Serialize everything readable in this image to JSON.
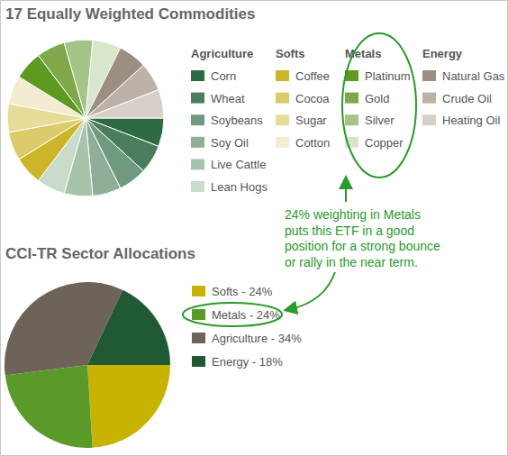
{
  "chart_data": [
    {
      "type": "pie",
      "title": "17 Equally Weighted Commodities",
      "series": [
        {
          "name": "Agriculture",
          "categories": [
            "Corn",
            "Wheat",
            "Soybeans",
            "Soy Oil",
            "Live Cattle",
            "Lean Hogs"
          ],
          "values": [
            5.88,
            5.88,
            5.88,
            5.88,
            5.88,
            5.88
          ],
          "colors": [
            "#2e6b45",
            "#4a7d5c",
            "#6f9a80",
            "#8fae98",
            "#a8c3ac",
            "#c8dcc9"
          ]
        },
        {
          "name": "Softs",
          "categories": [
            "Coffee",
            "Cocoa",
            "Sugar",
            "Cotton"
          ],
          "values": [
            5.88,
            5.88,
            5.88,
            5.88
          ],
          "colors": [
            "#cdb52a",
            "#dccb6a",
            "#e8dc9a",
            "#f3ecd0"
          ]
        },
        {
          "name": "Metals",
          "categories": [
            "Platinum",
            "Gold",
            "Silver",
            "Copper"
          ],
          "values": [
            5.88,
            5.88,
            5.88,
            5.88
          ],
          "colors": [
            "#5c9b1f",
            "#7ea84a",
            "#a5c487",
            "#d8e6cc"
          ]
        },
        {
          "name": "Energy",
          "categories": [
            "Natural Gas",
            "Crude Oil",
            "Heating Oil"
          ],
          "values": [
            5.88,
            5.88,
            5.88
          ],
          "colors": [
            "#9d8e82",
            "#bdb2a8",
            "#d6d0c9"
          ]
        }
      ]
    },
    {
      "type": "pie",
      "title": "CCI-TR Sector Allocations",
      "categories": [
        "Softs - 24%",
        "Metals - 24%",
        "Agriculture - 34%",
        "Energy - 18%"
      ],
      "values": [
        24,
        24,
        34,
        18
      ],
      "colors": [
        "#c8b400",
        "#5a9a2a",
        "#6e6358",
        "#1f5a35"
      ],
      "annotations": [
        "24% weighting in Metals",
        "puts this ETF in a good",
        "position for a strong bounce",
        "or rally in the near term."
      ]
    }
  ]
}
